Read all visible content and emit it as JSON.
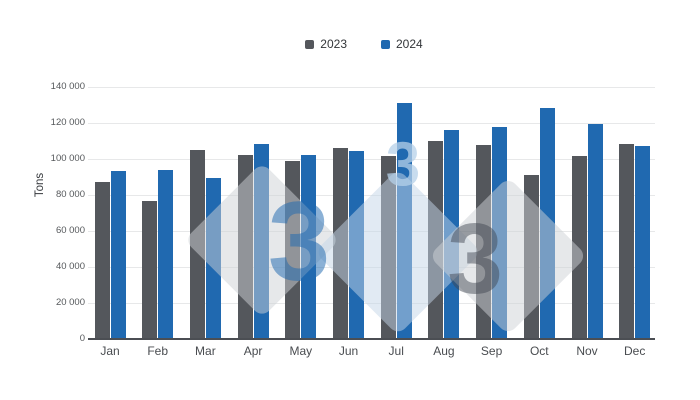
{
  "chart_data": {
    "type": "bar",
    "title": "",
    "xlabel": "",
    "ylabel": "Tons",
    "categories": [
      "Jan",
      "Feb",
      "Mar",
      "Apr",
      "May",
      "Jun",
      "Jul",
      "Aug",
      "Sep",
      "Oct",
      "Nov",
      "Dec"
    ],
    "series": [
      {
        "name": "2023",
        "color": "#54575C",
        "values": [
          87000,
          76500,
          105000,
          102500,
          99000,
          106000,
          101500,
          110000,
          108000,
          91000,
          101500,
          108500
        ]
      },
      {
        "name": "2024",
        "color": "#2069B0",
        "values": [
          93500,
          94000,
          89500,
          108500,
          102000,
          104500,
          131000,
          116000,
          118000,
          128500,
          119500,
          107000
        ]
      }
    ],
    "ylim": [
      0,
      140000
    ],
    "yticks": [
      0,
      20000,
      40000,
      60000,
      80000,
      100000,
      120000,
      140000
    ],
    "ytick_labels": [
      "0",
      "20 000",
      "40 000",
      "60 000",
      "80 000",
      "100 000",
      "120 000",
      "140 000"
    ],
    "grid": true,
    "legend_position": "top-center"
  },
  "watermark": {
    "digits": [
      "3",
      "3",
      "3"
    ]
  },
  "colors": {
    "background": "#FFFFFF",
    "gridline": "#E7E8E9",
    "axis_line": "#4B4E53",
    "tick_text": "#55585B",
    "month_text": "#494C50",
    "legend_text": "#333639"
  }
}
